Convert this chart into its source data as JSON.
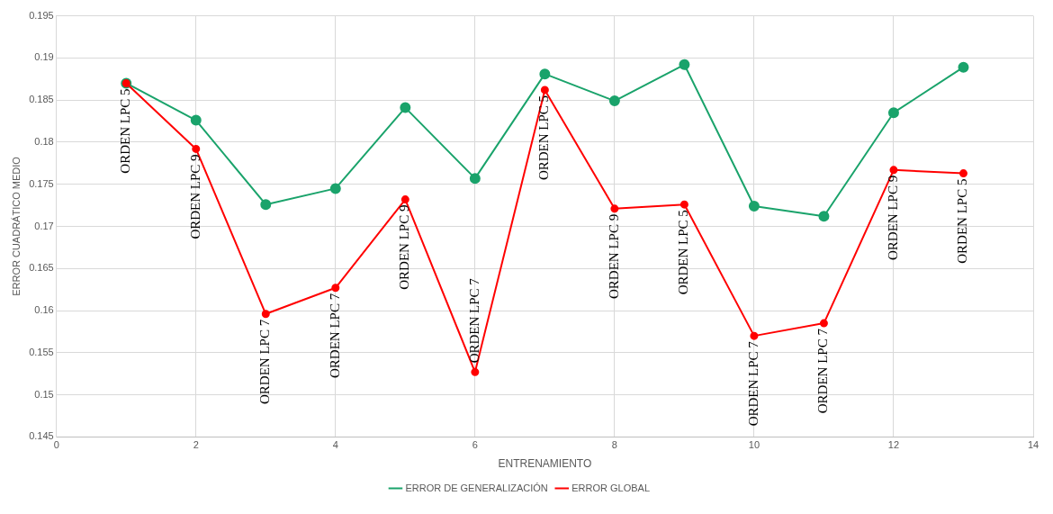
{
  "chart_data": {
    "type": "line",
    "xlabel": "ENTRENAMIENTO",
    "ylabel": "ERROR CUADRÁTICO MEDIO",
    "x": [
      1,
      2,
      3,
      4,
      5,
      6,
      7,
      8,
      9,
      10,
      11,
      12,
      13
    ],
    "series": [
      {
        "name": "ERROR DE GENERALIZACIÓN",
        "color": "#1aa36b",
        "values": [
          0.187,
          0.1826,
          0.1726,
          0.1745,
          0.1841,
          0.1757,
          0.1881,
          0.1849,
          0.1892,
          0.1724,
          0.1712,
          0.1835,
          0.1889
        ]
      },
      {
        "name": "ERROR GLOBAL",
        "color": "#ff0000",
        "values": [
          0.187,
          0.1792,
          0.1596,
          0.1627,
          0.1732,
          0.1527,
          0.1862,
          0.1721,
          0.1726,
          0.157,
          0.1585,
          0.1767,
          0.1763
        ]
      }
    ],
    "annotations": [
      {
        "text": "ORDEN LPC 5",
        "x": 1,
        "y": 0.187
      },
      {
        "text": "ORDEN LPC 9",
        "x": 2,
        "y": 0.1792
      },
      {
        "text": "ORDEN LPC 7",
        "x": 3,
        "y": 0.1596
      },
      {
        "text": "ORDEN LPC 7",
        "x": 4,
        "y": 0.1627
      },
      {
        "text": "ORDEN LPC 9",
        "x": 5,
        "y": 0.1732
      },
      {
        "text": "ORDEN LPC 7",
        "x": 6,
        "y": 0.1527
      },
      {
        "text": "ORDEN LPC 5",
        "x": 7,
        "y": 0.1862
      },
      {
        "text": "ORDEN LPC 9",
        "x": 8,
        "y": 0.1721
      },
      {
        "text": "ORDEN LPC 5",
        "x": 9,
        "y": 0.1726
      },
      {
        "text": "ORDEN LPC 7",
        "x": 10,
        "y": 0.157
      },
      {
        "text": "ORDEN LPC 7",
        "x": 11,
        "y": 0.1585
      },
      {
        "text": "ORDEN LPC 9",
        "x": 12,
        "y": 0.1767
      },
      {
        "text": "ORDEN LPC 5",
        "x": 13,
        "y": 0.1763
      }
    ],
    "xlim": [
      0,
      14
    ],
    "xticks": [
      0,
      2,
      4,
      6,
      8,
      10,
      12,
      14
    ],
    "ylim": [
      0.145,
      0.195
    ],
    "yticks": [
      0.145,
      0.15,
      0.155,
      0.16,
      0.165,
      0.17,
      0.175,
      0.18,
      0.185,
      0.19,
      0.195
    ],
    "grid": true,
    "legend": "bottom",
    "marker": "circle",
    "line_style": "solid"
  }
}
